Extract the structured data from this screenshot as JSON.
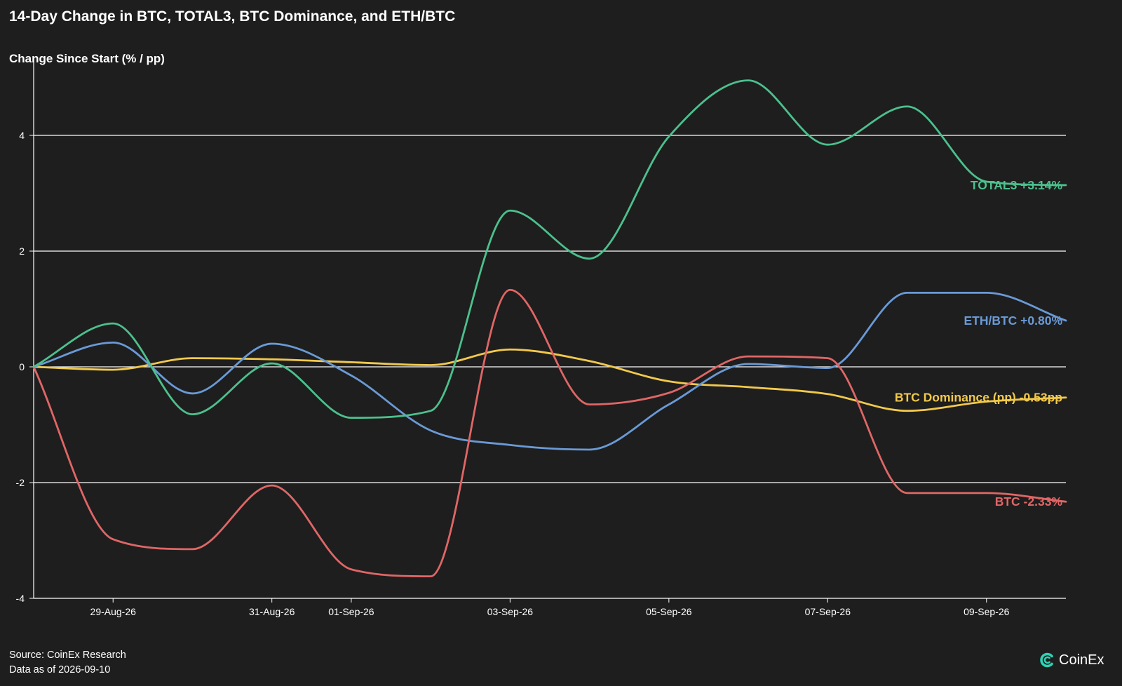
{
  "header": {
    "title": "14-Day Change in BTC, TOTAL3, BTC Dominance, and ETH/BTC",
    "ylabel": "Change Since Start (% / pp)"
  },
  "footer": {
    "source": "Source: CoinEx Research",
    "data_as_of": "Data as of 2026-09-10"
  },
  "brand": {
    "logo_text": "CoinEx",
    "logo_icon": "coinex-logo-icon"
  },
  "chart_data": {
    "type": "line",
    "title": "14-Day Change in BTC, TOTAL3, BTC Dominance, and ETH/BTC",
    "xlabel": "",
    "ylabel": "Change Since Start (% / pp)",
    "x": [
      "2026-08-28",
      "2026-08-29",
      "2026-08-30",
      "2026-08-31",
      "2026-09-01",
      "2026-09-02",
      "2026-09-03",
      "2026-09-04",
      "2026-09-05",
      "2026-09-06",
      "2026-09-07",
      "2026-09-08",
      "2026-09-09",
      "2026-09-10"
    ],
    "x_ticks": [
      "29-Aug-26",
      "31-Aug-26",
      "01-Sep-26",
      "03-Sep-26",
      "05-Sep-26",
      "07-Sep-26",
      "09-Sep-26"
    ],
    "x_tick_dates": [
      "2026-08-29",
      "2026-08-31",
      "2026-09-01",
      "2026-09-03",
      "2026-09-05",
      "2026-09-07",
      "2026-09-09"
    ],
    "ylim": [
      -4,
      5
    ],
    "y_ticks": [
      -4,
      -2,
      0,
      2,
      4
    ],
    "grid": "horizontal",
    "legend": "inline end labels",
    "series": [
      {
        "name": "TOTAL3",
        "end_label": "TOTAL3 +3.14%",
        "color": "#4cc08d",
        "values": [
          0,
          0.75,
          -0.82,
          0.06,
          -0.88,
          -0.76,
          2.7,
          1.87,
          3.98,
          4.95,
          3.84,
          4.5,
          3.2,
          3.14
        ]
      },
      {
        "name": "ETH/BTC",
        "end_label": "ETH/BTC +0.80%",
        "color": "#6a9ad6",
        "values": [
          0,
          0.42,
          -0.46,
          0.4,
          -0.15,
          -1.1,
          -1.35,
          -1.43,
          -0.65,
          0.05,
          -0.02,
          1.28,
          1.28,
          0.8
        ]
      },
      {
        "name": "BTC Dominance (pp)",
        "end_label": "BTC Dominance (pp) -0.53pp",
        "color": "#f2c94c",
        "values": [
          0,
          -0.05,
          0.15,
          0.13,
          0.08,
          0.03,
          0.3,
          0.1,
          -0.25,
          -0.35,
          -0.47,
          -0.76,
          -0.6,
          -0.53
        ]
      },
      {
        "name": "BTC",
        "end_label": "BTC -2.33%",
        "color": "#e06666",
        "values": [
          0,
          -2.98,
          -3.15,
          -2.05,
          -3.5,
          -3.62,
          1.33,
          -0.65,
          -0.45,
          0.18,
          0.15,
          -2.18,
          -2.18,
          -2.33
        ]
      }
    ]
  }
}
